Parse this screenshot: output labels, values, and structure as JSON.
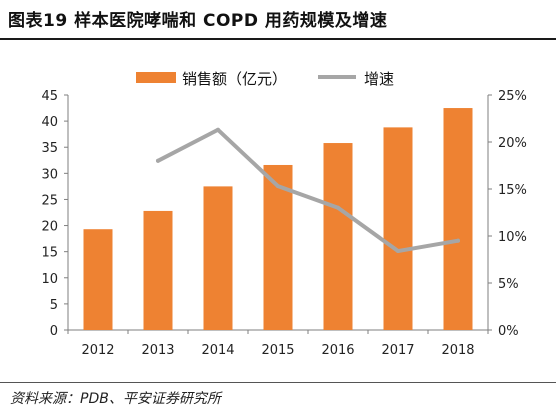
{
  "header": {
    "title": "图表19   样本医院哮喘和 COPD 用药规模及增速"
  },
  "colors": {
    "bar": "#EE8232",
    "line": "#A6A6A6",
    "axis": "#7F7F7F"
  },
  "chart_data": {
    "type": "bar",
    "categories": [
      "2012",
      "2013",
      "2014",
      "2015",
      "2016",
      "2017",
      "2018"
    ],
    "series": [
      {
        "name": "销售额（亿元）",
        "type": "bar",
        "axis": "left",
        "values": [
          19.3,
          22.8,
          27.5,
          31.6,
          35.8,
          38.8,
          42.5
        ]
      },
      {
        "name": "增速",
        "type": "line",
        "axis": "right",
        "values": [
          null,
          18.0,
          21.3,
          15.3,
          13.0,
          8.4,
          9.5
        ]
      }
    ],
    "y_left": {
      "lim": [
        0,
        45
      ],
      "ticks": [
        "0",
        "5",
        "10",
        "15",
        "20",
        "25",
        "30",
        "35",
        "40",
        "45"
      ]
    },
    "y_right": {
      "lim": [
        0,
        25
      ],
      "unit": "%",
      "ticks": [
        "0%",
        "5%",
        "10%",
        "15%",
        "20%",
        "25%"
      ]
    },
    "grid": false,
    "legend_position": "top"
  },
  "footer": {
    "source": "资料来源：PDB、平安证券研究所"
  }
}
